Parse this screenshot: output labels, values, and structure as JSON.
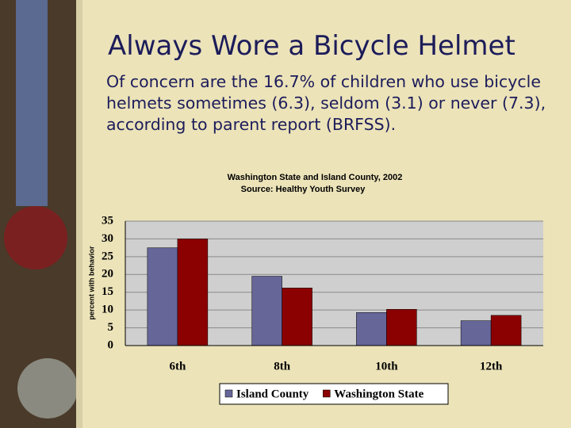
{
  "slide": {
    "title": "Always Wore a Bicycle Helmet",
    "text": "Of concern are the 16.7% of children who use bicycle helmets sometimes (6.3), seldom (3.1) or never (7.3), according to parent report (BRFSS)."
  },
  "chart_data": {
    "type": "bar",
    "title": "Washington State and Island County, 2002",
    "subtitle": "Source:  Healthy Youth Survey",
    "y_label": "percent with behavior",
    "categories": [
      "6th",
      "8th",
      "10th",
      "12th"
    ],
    "series": [
      {
        "name": "Island County",
        "color": "#666699",
        "values": [
          27.5,
          19.5,
          9.3,
          7
        ]
      },
      {
        "name": "Washington State",
        "color": "#8b0000",
        "values": [
          30,
          16.2,
          10.2,
          8.5
        ]
      }
    ],
    "ylim": [
      0,
      35
    ],
    "yticks": [
      0,
      5,
      10,
      15,
      20,
      25,
      30,
      35
    ],
    "grid": true,
    "legend": "bottom"
  }
}
